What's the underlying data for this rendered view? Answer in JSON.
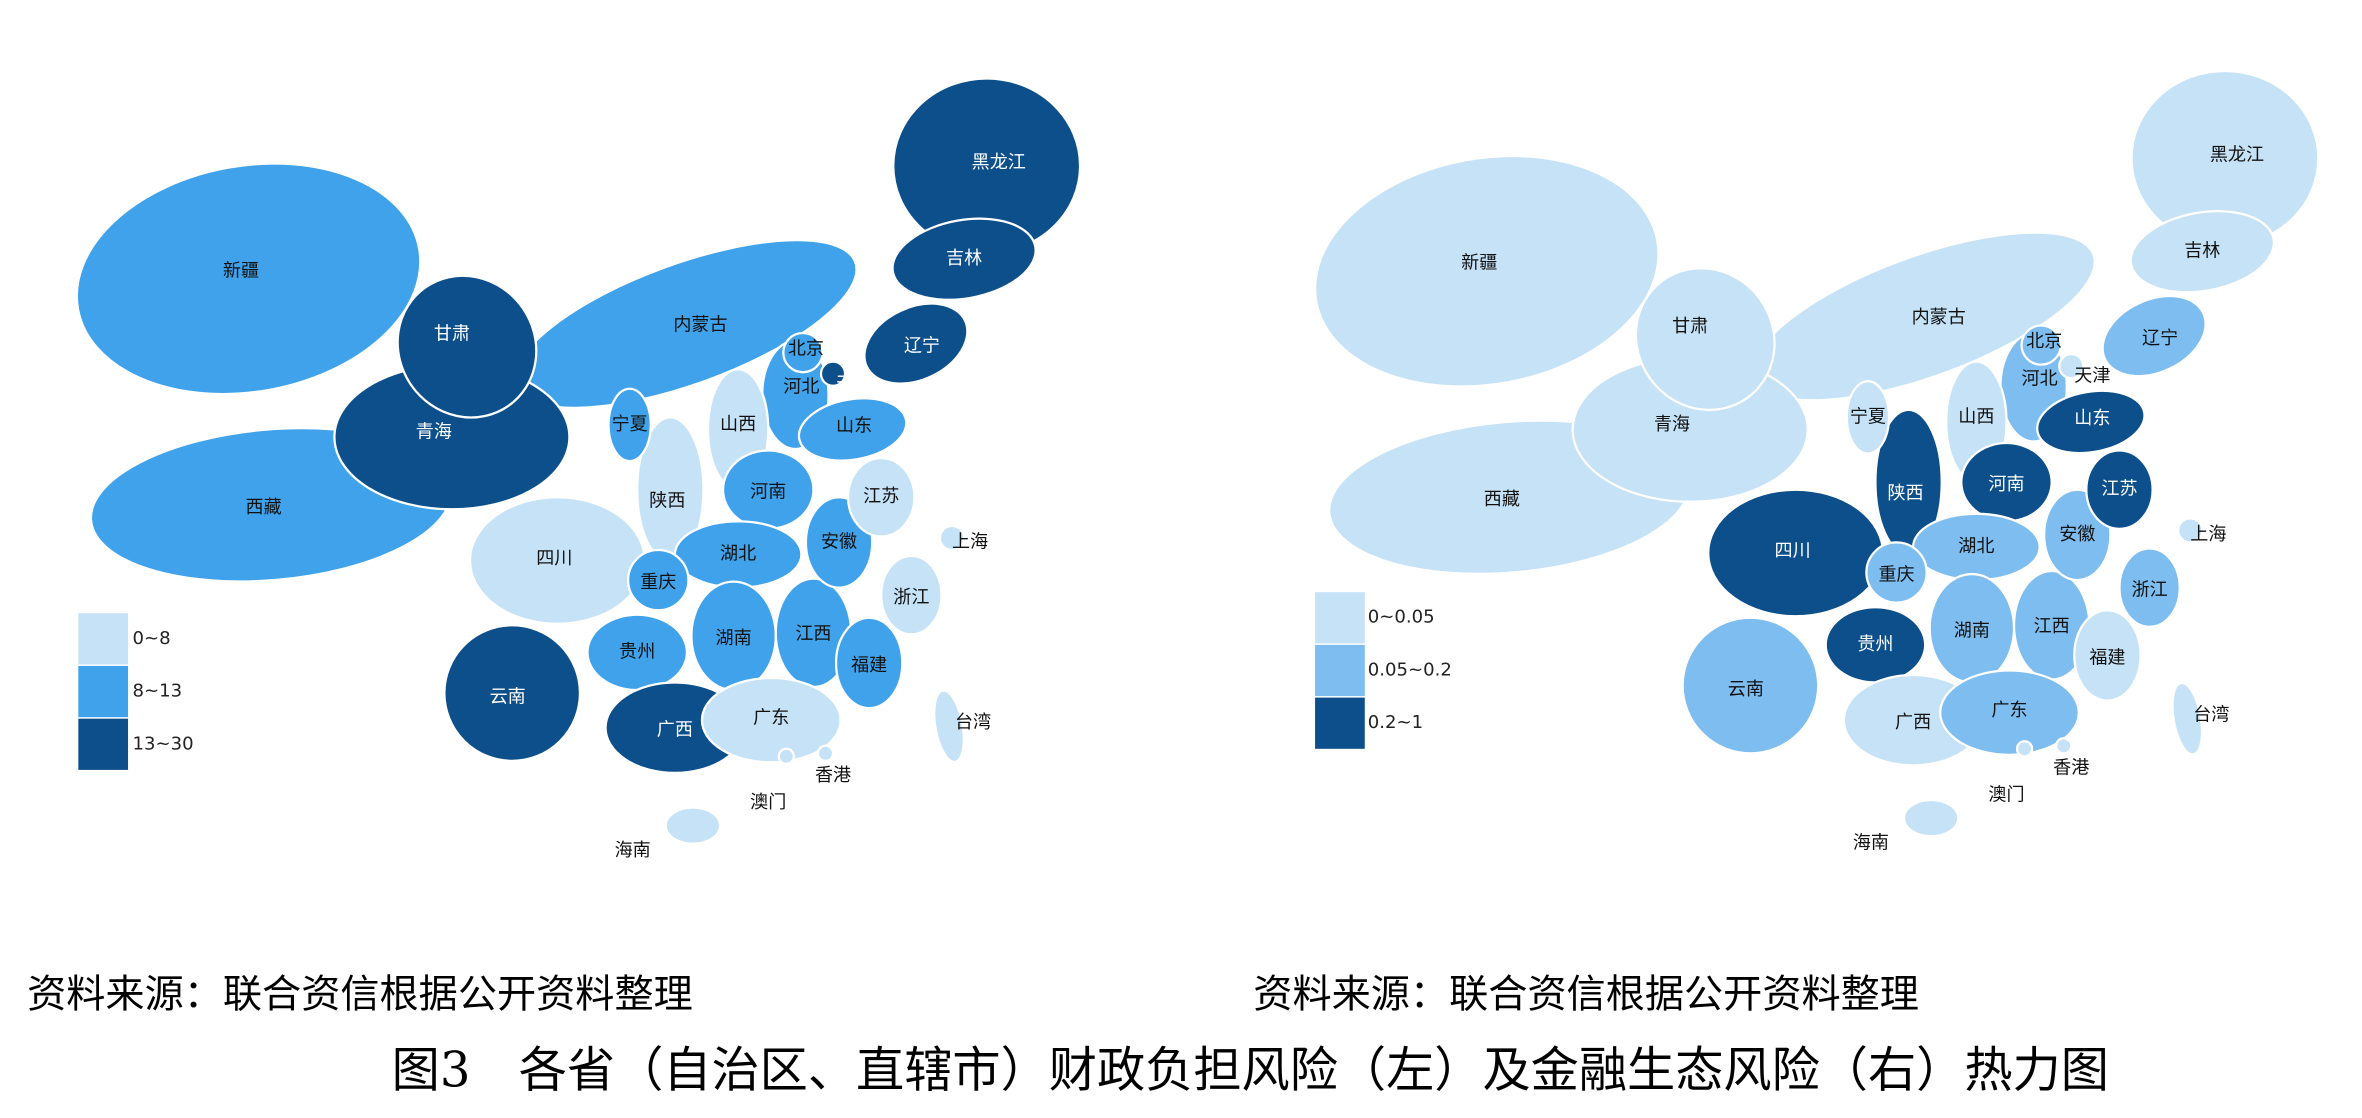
{
  "maps": [
    {
      "legend": [
        {
          "label": "0~8",
          "color": "#c6e2f7"
        },
        {
          "label": "8~13",
          "color": "#3fa2ea"
        },
        {
          "label": "13~30",
          "color": "#0d4f8b"
        }
      ],
      "provinces": [
        {
          "name": "新疆",
          "class": 1
        },
        {
          "name": "西藏",
          "class": 1
        },
        {
          "name": "内蒙古",
          "class": 1
        },
        {
          "name": "青海",
          "class": 2
        },
        {
          "name": "甘肃",
          "class": 2
        },
        {
          "name": "黑龙江",
          "class": 2
        },
        {
          "name": "四川",
          "class": 0
        },
        {
          "name": "云南",
          "class": 2
        },
        {
          "name": "吉林",
          "class": 2
        },
        {
          "name": "辽宁",
          "class": 2
        },
        {
          "name": "河北",
          "class": 1
        },
        {
          "name": "山西",
          "class": 0
        },
        {
          "name": "陕西",
          "class": 0
        },
        {
          "name": "山东",
          "class": 1
        },
        {
          "name": "河南",
          "class": 1
        },
        {
          "name": "湖北",
          "class": 1
        },
        {
          "name": "湖南",
          "class": 1
        },
        {
          "name": "江西",
          "class": 1
        },
        {
          "name": "安徽",
          "class": 1
        },
        {
          "name": "江苏",
          "class": 0
        },
        {
          "name": "浙江",
          "class": 0
        },
        {
          "name": "福建",
          "class": 1
        },
        {
          "name": "贵州",
          "class": 1
        },
        {
          "name": "广西",
          "class": 2
        },
        {
          "name": "广东",
          "class": 0
        },
        {
          "name": "宁夏",
          "class": 1
        },
        {
          "name": "重庆",
          "class": 1
        },
        {
          "name": "北京",
          "class": 1
        },
        {
          "name": "天津",
          "class": 2
        },
        {
          "name": "上海",
          "class": 0
        },
        {
          "name": "海南",
          "class": 0
        },
        {
          "name": "台湾",
          "class": 0
        },
        {
          "name": "香港",
          "class": 0
        },
        {
          "name": "澳门",
          "class": 0
        }
      ]
    },
    {
      "legend": [
        {
          "label": "0~0.05",
          "color": "#c6e2f7"
        },
        {
          "label": "0.05~0.2",
          "color": "#7dbdf0"
        },
        {
          "label": "0.2~1",
          "color": "#0d4f8b"
        }
      ],
      "provinces": [
        {
          "name": "新疆",
          "class": 0
        },
        {
          "name": "西藏",
          "class": 0
        },
        {
          "name": "内蒙古",
          "class": 0
        },
        {
          "name": "青海",
          "class": 0
        },
        {
          "name": "甘肃",
          "class": 0
        },
        {
          "name": "黑龙江",
          "class": 0
        },
        {
          "name": "四川",
          "class": 2
        },
        {
          "name": "云南",
          "class": 1
        },
        {
          "name": "吉林",
          "class": 0
        },
        {
          "name": "辽宁",
          "class": 1
        },
        {
          "name": "河北",
          "class": 1
        },
        {
          "name": "山西",
          "class": 0
        },
        {
          "name": "陕西",
          "class": 2
        },
        {
          "name": "山东",
          "class": 2
        },
        {
          "name": "河南",
          "class": 2
        },
        {
          "name": "湖北",
          "class": 1
        },
        {
          "name": "湖南",
          "class": 1
        },
        {
          "name": "江西",
          "class": 1
        },
        {
          "name": "安徽",
          "class": 1
        },
        {
          "name": "江苏",
          "class": 2
        },
        {
          "name": "浙江",
          "class": 1
        },
        {
          "name": "福建",
          "class": 0
        },
        {
          "name": "贵州",
          "class": 2
        },
        {
          "name": "广西",
          "class": 0
        },
        {
          "name": "广东",
          "class": 1
        },
        {
          "name": "宁夏",
          "class": 0
        },
        {
          "name": "重庆",
          "class": 1
        },
        {
          "name": "北京",
          "class": 1
        },
        {
          "name": "天津",
          "class": 0
        },
        {
          "name": "上海",
          "class": 0
        },
        {
          "name": "海南",
          "class": 0
        },
        {
          "name": "台湾",
          "class": 0
        },
        {
          "name": "香港",
          "class": 0
        },
        {
          "name": "澳门",
          "class": 0
        }
      ]
    }
  ],
  "sources": [
    "资料来源：联合资信根据公开资料整理",
    "资料来源：联合资信根据公开资料整理"
  ],
  "caption": "图3　各省（自治区、直辖市）财政负担风险（左）及金融生态风险（右）热力图"
}
